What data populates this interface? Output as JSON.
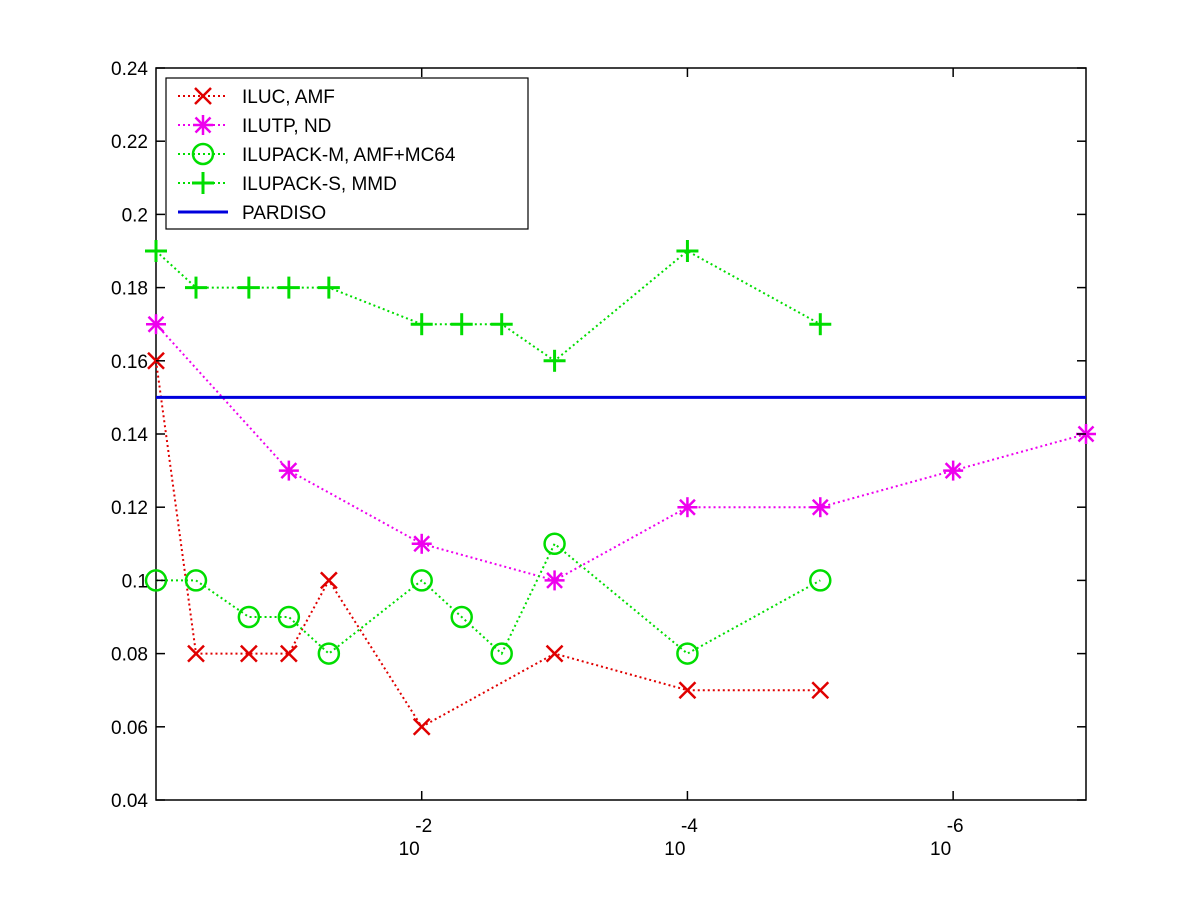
{
  "chart_data": {
    "type": "line",
    "title": "",
    "xlabel": "",
    "ylabel": "",
    "x_scale": "log-reversed",
    "xlim": [
      1,
      1e-07
    ],
    "ylim": [
      0.04,
      0.24
    ],
    "grid": false,
    "legend_position": "top-left",
    "y_ticks": [
      {
        "value": 0.04,
        "label": "0.04"
      },
      {
        "value": 0.06,
        "label": "0.06"
      },
      {
        "value": 0.08,
        "label": "0.08"
      },
      {
        "value": 0.1,
        "label": "0.1"
      },
      {
        "value": 0.12,
        "label": "0.12"
      },
      {
        "value": 0.14,
        "label": "0.14"
      },
      {
        "value": 0.16,
        "label": "0.16"
      },
      {
        "value": 0.18,
        "label": "0.18"
      },
      {
        "value": 0.2,
        "label": "0.2"
      },
      {
        "value": 0.22,
        "label": "0.22"
      },
      {
        "value": 0.24,
        "label": "0.24"
      }
    ],
    "x_ticks": [
      {
        "value": 0.01,
        "base": "10",
        "exponent": "-2"
      },
      {
        "value": 0.0001,
        "base": "10",
        "exponent": "-4"
      },
      {
        "value": 1e-06,
        "base": "10",
        "exponent": "-6"
      }
    ],
    "series": [
      {
        "name": "ILUC, AMF",
        "color": "#e00000",
        "marker": "x",
        "line": "dotted",
        "points": [
          {
            "x": 1.0,
            "y": 0.16
          },
          {
            "x": 0.5,
            "y": 0.08
          },
          {
            "x": 0.2,
            "y": 0.08
          },
          {
            "x": 0.1,
            "y": 0.08
          },
          {
            "x": 0.05,
            "y": 0.1
          },
          {
            "x": 0.01,
            "y": 0.06
          },
          {
            "x": 0.001,
            "y": 0.08
          },
          {
            "x": 0.0001,
            "y": 0.07
          },
          {
            "x": 1e-05,
            "y": 0.07
          }
        ]
      },
      {
        "name": "ILUTP,  ND",
        "color": "#ee00ee",
        "marker": "asterisk",
        "line": "dotted",
        "points": [
          {
            "x": 1.0,
            "y": 0.17
          },
          {
            "x": 0.1,
            "y": 0.13
          },
          {
            "x": 0.01,
            "y": 0.11
          },
          {
            "x": 0.001,
            "y": 0.1
          },
          {
            "x": 0.0001,
            "y": 0.12
          },
          {
            "x": 1e-05,
            "y": 0.12
          },
          {
            "x": 1e-06,
            "y": 0.13
          },
          {
            "x": 1e-07,
            "y": 0.14
          }
        ]
      },
      {
        "name": "ILUPACK-M, AMF+MC64",
        "color": "#00dd00",
        "marker": "circle",
        "line": "dotted",
        "points": [
          {
            "x": 1.0,
            "y": 0.1
          },
          {
            "x": 0.5,
            "y": 0.1
          },
          {
            "x": 0.2,
            "y": 0.09
          },
          {
            "x": 0.1,
            "y": 0.09
          },
          {
            "x": 0.05,
            "y": 0.08
          },
          {
            "x": 0.01,
            "y": 0.1
          },
          {
            "x": 0.005,
            "y": 0.09
          },
          {
            "x": 0.0025,
            "y": 0.08
          },
          {
            "x": 0.001,
            "y": 0.11
          },
          {
            "x": 0.0001,
            "y": 0.08
          },
          {
            "x": 1e-05,
            "y": 0.1
          }
        ]
      },
      {
        "name": "ILUPACK-S, MMD",
        "color": "#00dd00",
        "marker": "plus",
        "line": "dotted",
        "points": [
          {
            "x": 1.0,
            "y": 0.19
          },
          {
            "x": 0.5,
            "y": 0.18
          },
          {
            "x": 0.2,
            "y": 0.18
          },
          {
            "x": 0.1,
            "y": 0.18
          },
          {
            "x": 0.05,
            "y": 0.18
          },
          {
            "x": 0.01,
            "y": 0.17
          },
          {
            "x": 0.005,
            "y": 0.17
          },
          {
            "x": 0.0025,
            "y": 0.17
          },
          {
            "x": 0.001,
            "y": 0.16
          },
          {
            "x": 0.0001,
            "y": 0.19
          },
          {
            "x": 1e-05,
            "y": 0.17
          }
        ]
      },
      {
        "name": "PARDISO",
        "color": "#0000dd",
        "marker": "none",
        "line": "solid",
        "points": [
          {
            "x": 1.0,
            "y": 0.15
          },
          {
            "x": 1e-07,
            "y": 0.15
          }
        ]
      }
    ]
  }
}
